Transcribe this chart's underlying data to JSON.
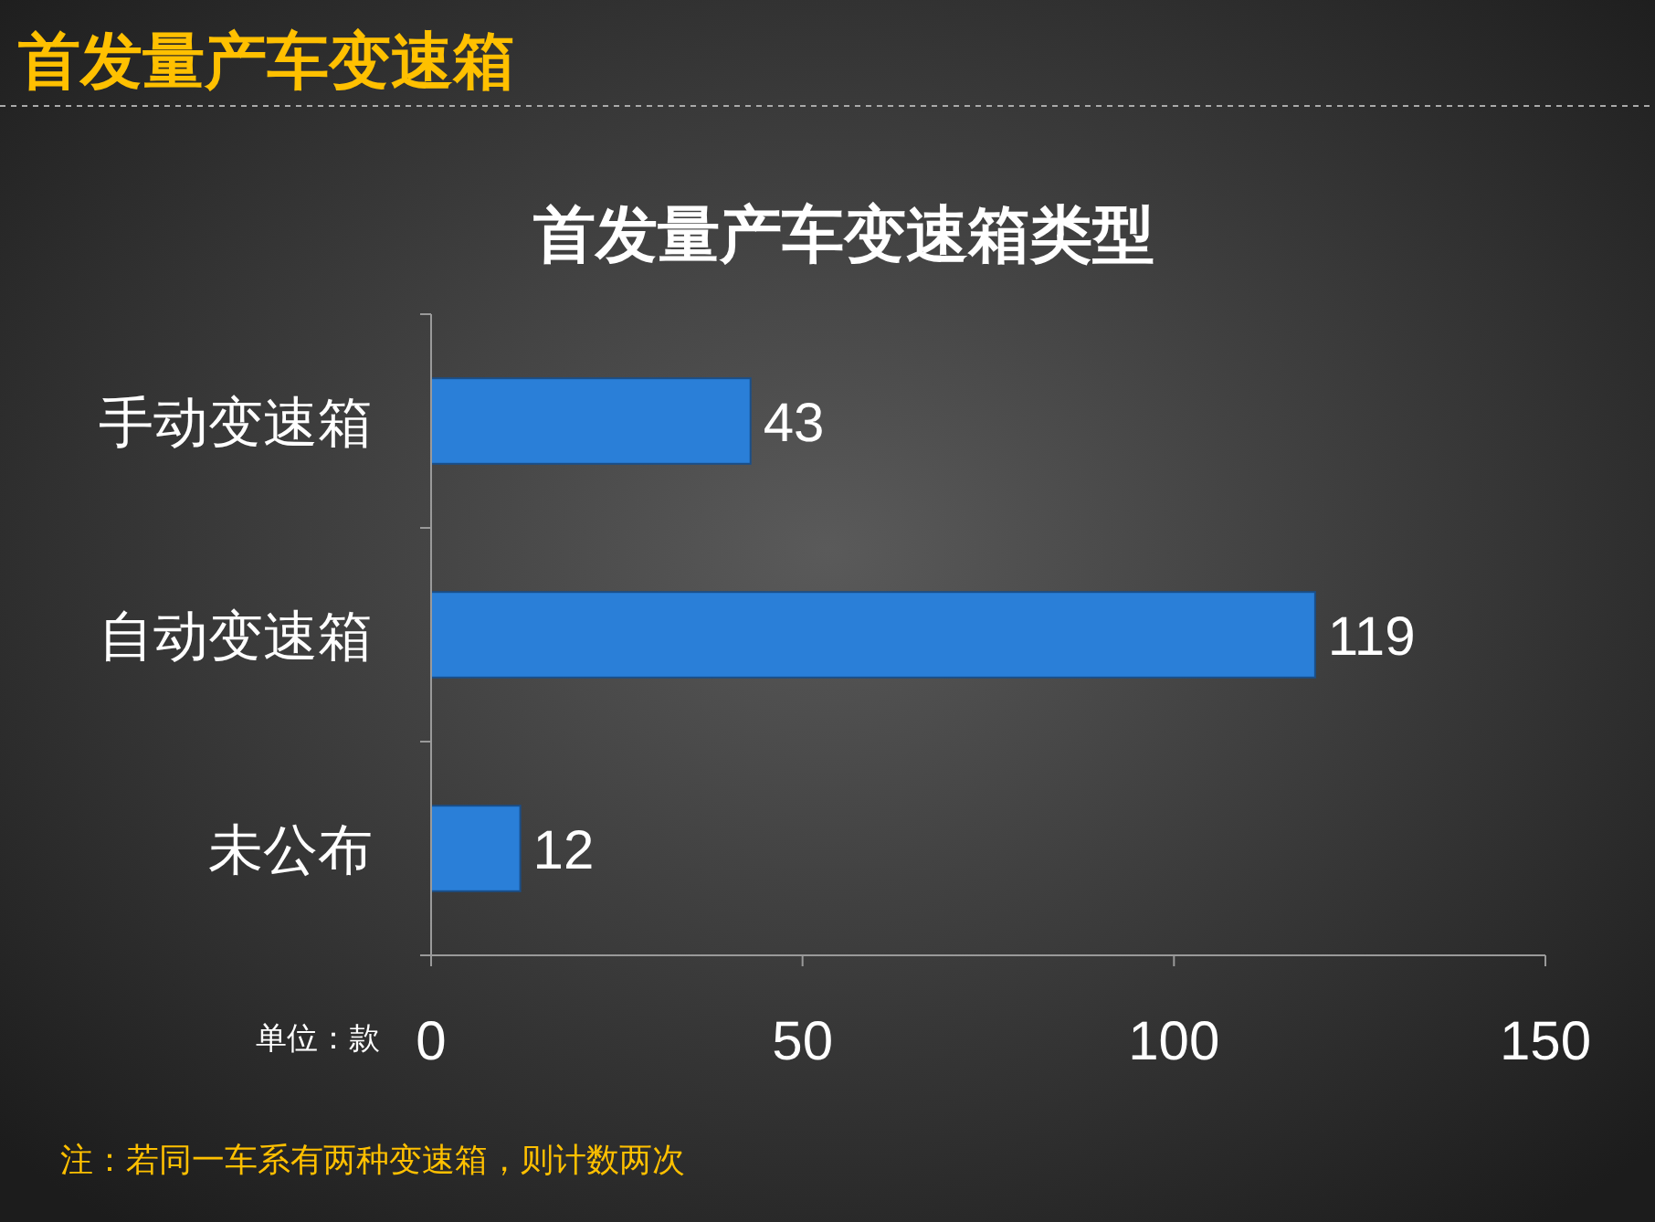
{
  "chart_data": {
    "type": "bar",
    "orientation": "horizontal",
    "title": "首发量产车变速箱类型",
    "categories": [
      "手动变速箱",
      "自动变速箱",
      "未公布"
    ],
    "values": [
      43,
      119,
      12
    ],
    "color": "#2a7fd8",
    "xlim": [
      0,
      150
    ],
    "xticks": [
      0,
      50,
      100,
      150
    ],
    "grid": false,
    "data_labels": true,
    "annotations": [
      "首发量产车变速箱",
      "单位：款",
      "注：若同一车系有两种变速箱，则计数两次"
    ]
  }
}
